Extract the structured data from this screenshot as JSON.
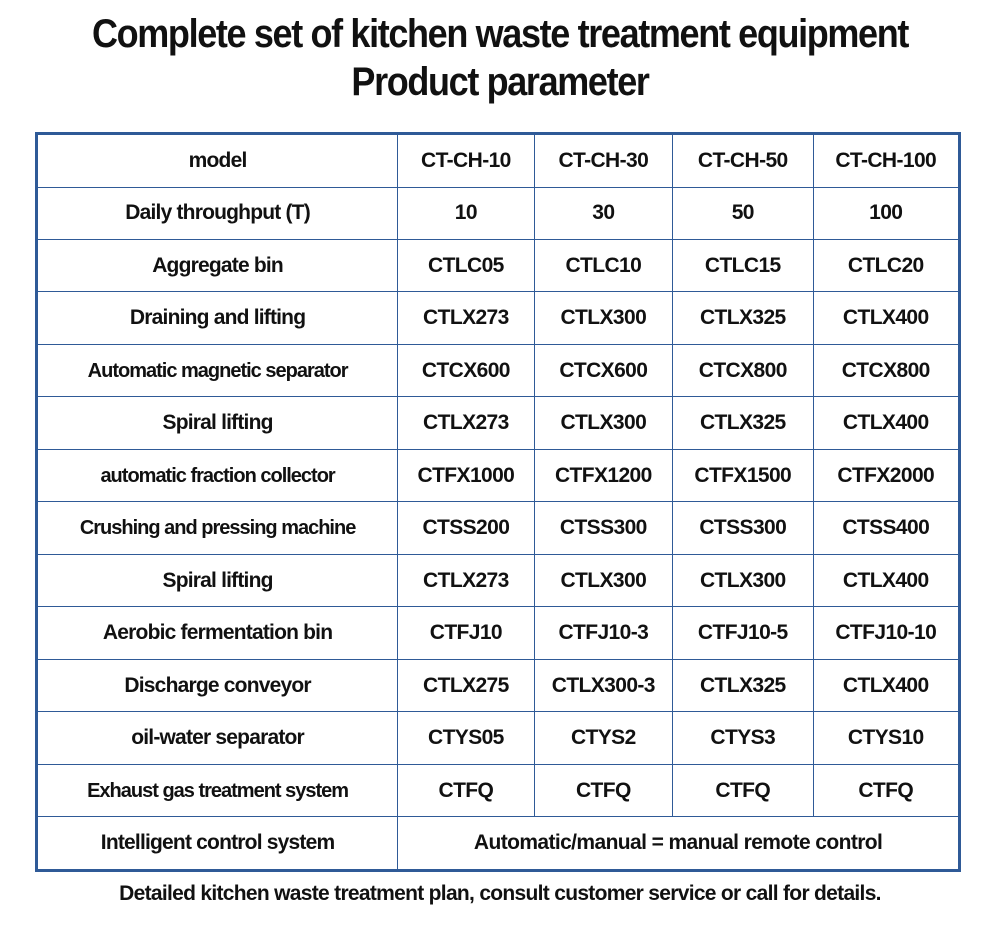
{
  "title": {
    "line1": "Complete set of kitchen waste treatment equipment",
    "line2": "Product parameter"
  },
  "table": {
    "header": {
      "label": "model",
      "models": [
        "CT-CH-10",
        "CT-CH-30",
        "CT-CH-50",
        "CT-CH-100"
      ]
    },
    "rows": [
      {
        "label": "Daily throughput (T)",
        "values": [
          "10",
          "30",
          "50",
          "100"
        ]
      },
      {
        "label": "Aggregate bin",
        "values": [
          "CTLC05",
          "CTLC10",
          "CTLC15",
          "CTLC20"
        ]
      },
      {
        "label": "Draining and lifting",
        "values": [
          "CTLX273",
          "CTLX300",
          "CTLX325",
          "CTLX400"
        ]
      },
      {
        "label": "Automatic magnetic separator",
        "values": [
          "CTCX600",
          "CTCX600",
          "CTCX800",
          "CTCX800"
        ]
      },
      {
        "label": "Spiral lifting",
        "values": [
          "CTLX273",
          "CTLX300",
          "CTLX325",
          "CTLX400"
        ]
      },
      {
        "label": "automatic fraction collector",
        "values": [
          "CTFX1000",
          "CTFX1200",
          "CTFX1500",
          "CTFX2000"
        ]
      },
      {
        "label": "Crushing and pressing machine",
        "values": [
          "CTSS200",
          "CTSS300",
          "CTSS300",
          "CTSS400"
        ]
      },
      {
        "label": "Spiral lifting",
        "values": [
          "CTLX273",
          "CTLX300",
          "CTLX300",
          "CTLX400"
        ]
      },
      {
        "label": "Aerobic fermentation bin",
        "values": [
          "CTFJ10",
          "CTFJ10-3",
          "CTFJ10-5",
          "CTFJ10-10"
        ]
      },
      {
        "label": "Discharge conveyor",
        "values": [
          "CTLX275",
          "CTLX300-3",
          "CTLX325",
          "CTLX400"
        ]
      },
      {
        "label": "oil-water separator",
        "values": [
          "CTYS05",
          "CTYS2",
          "CTYS3",
          "CTYS10"
        ]
      },
      {
        "label": "Exhaust gas treatment system",
        "values": [
          "CTFQ",
          "CTFQ",
          "CTFQ",
          "CTFQ"
        ]
      }
    ],
    "control_row": {
      "label": "Intelligent control system",
      "value": "Automatic/manual = manual remote control"
    }
  },
  "footer": "Detailed kitchen waste treatment plan, consult customer service or call for details.",
  "colors": {
    "border": "#2f5a97",
    "text": "#111111"
  }
}
